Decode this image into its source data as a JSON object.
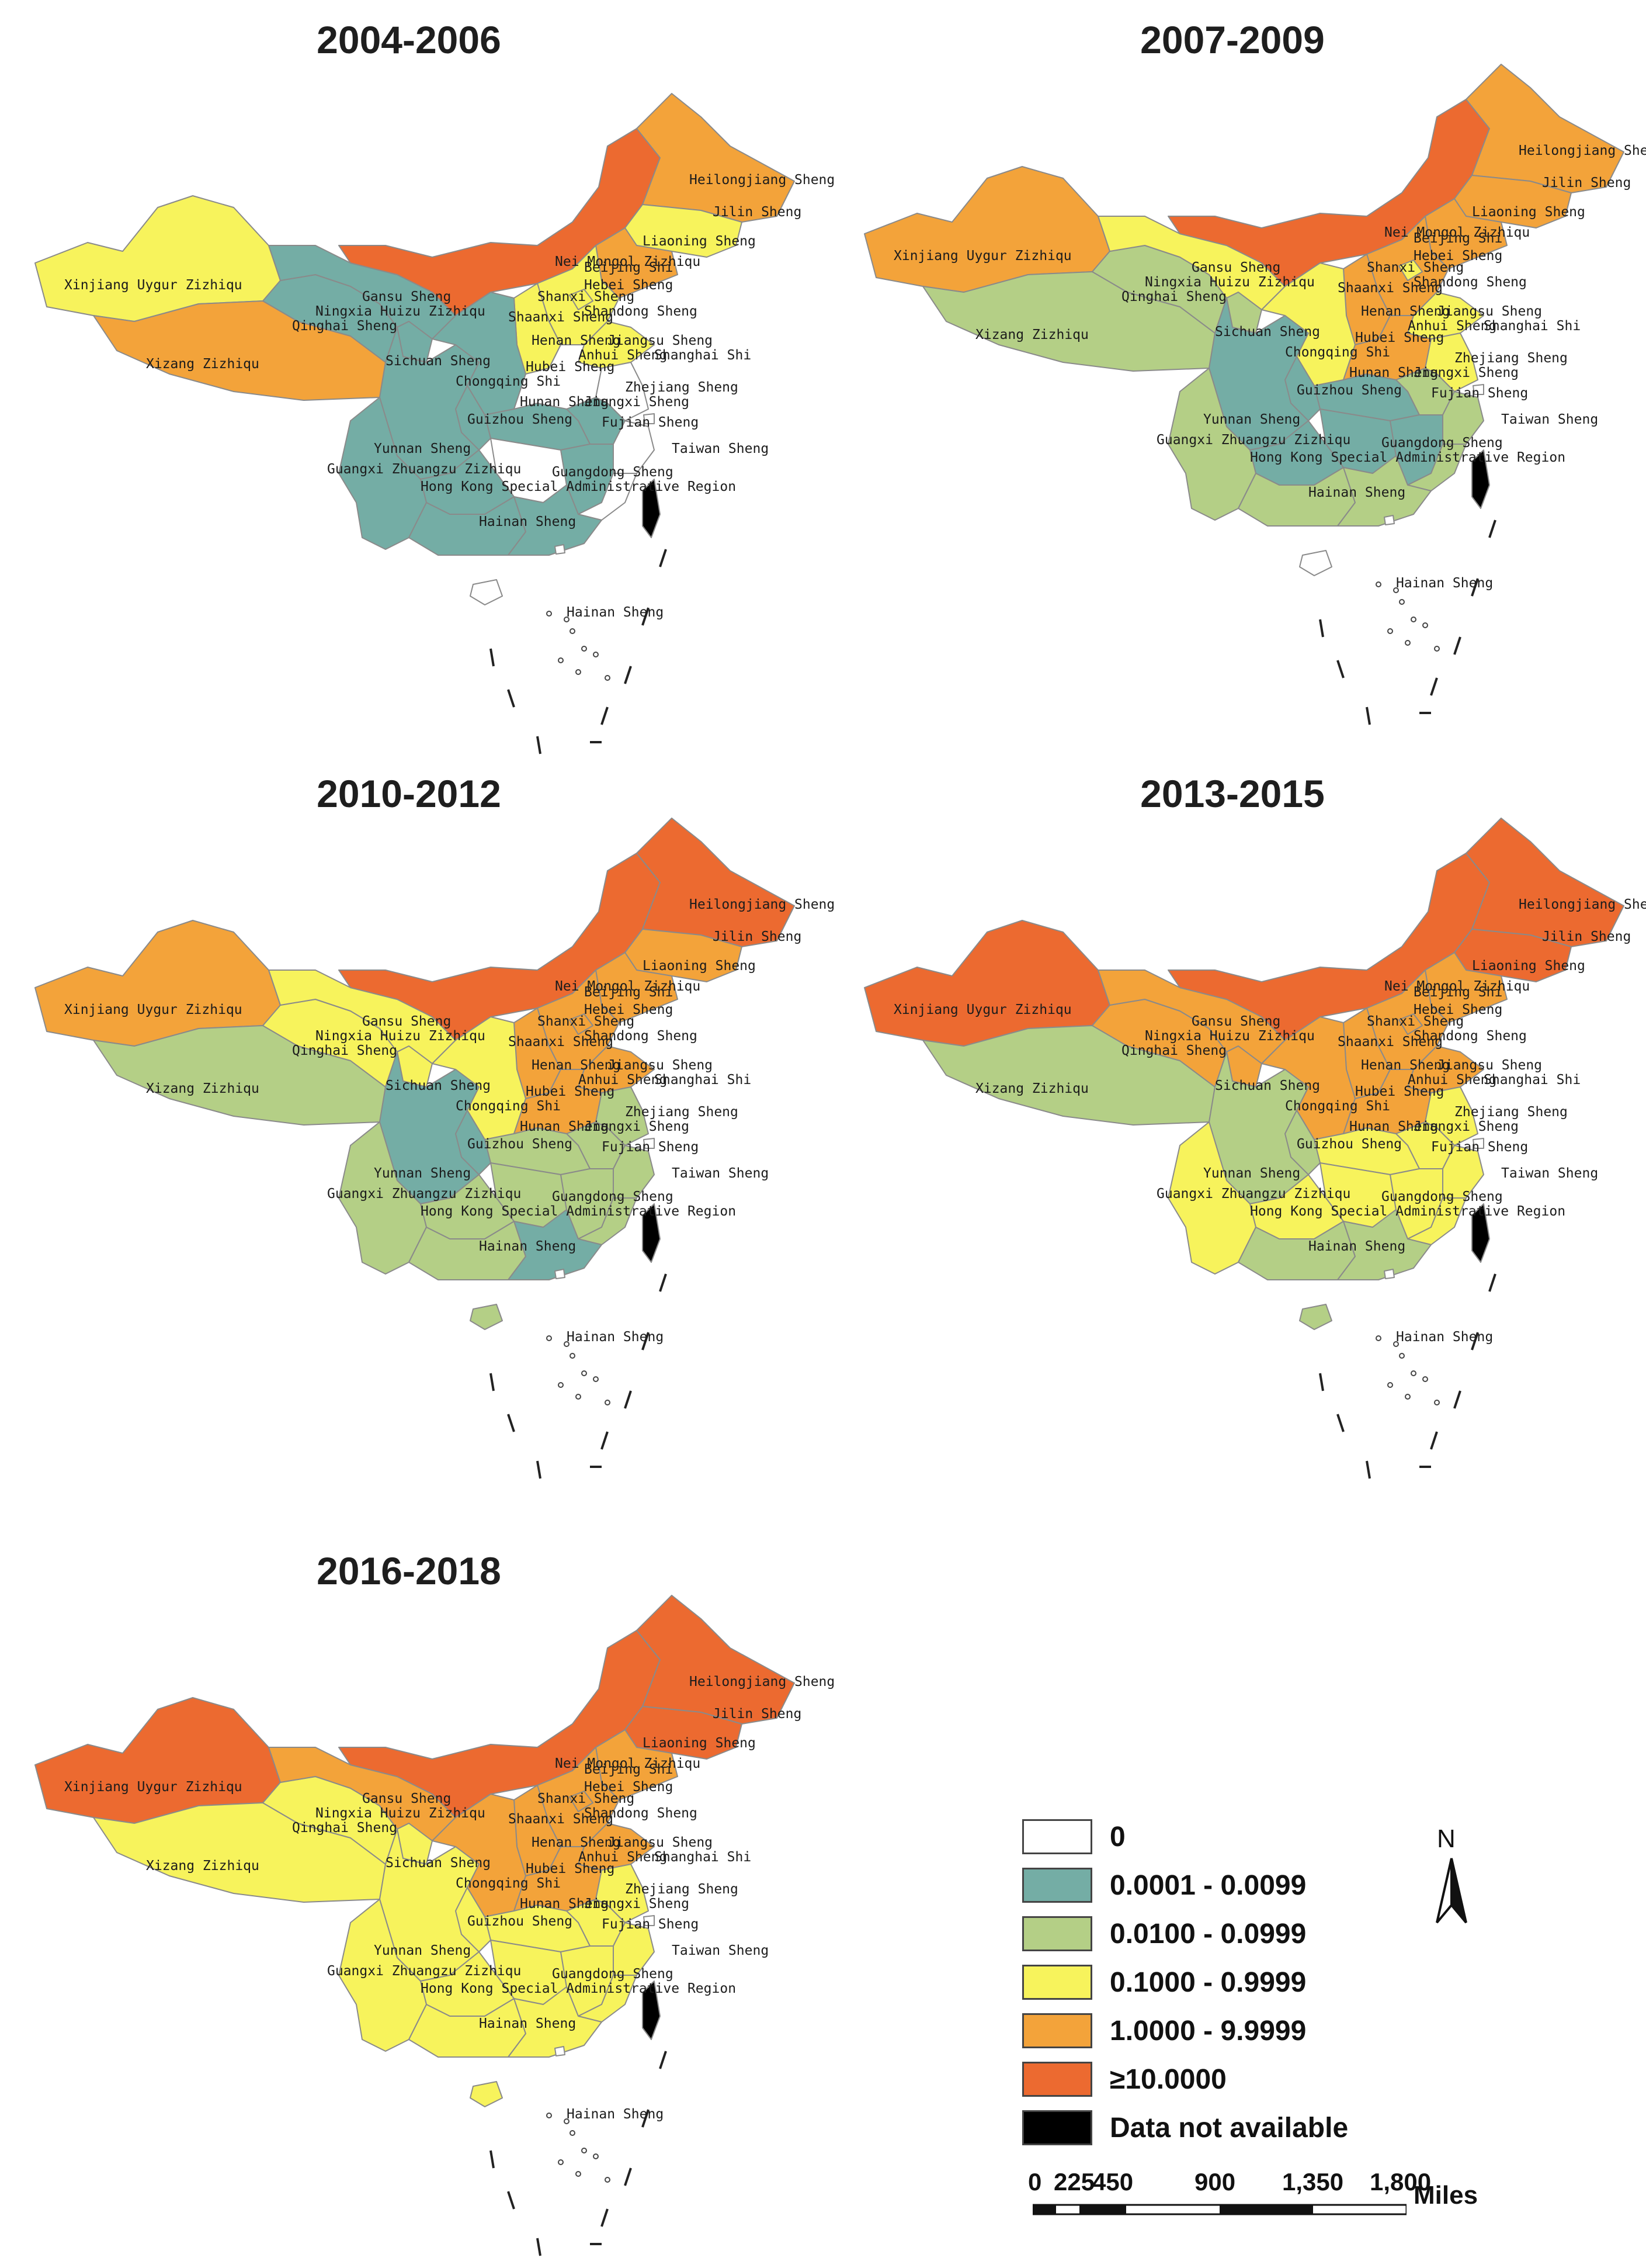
{
  "colors": {
    "c0": "#ffffff",
    "c1": "#74ada5",
    "c2": "#b4cf86",
    "c3": "#f7f35c",
    "c4": "#f3a33a",
    "c5": "#ec6a30",
    "na": "#000000"
  },
  "panels": [
    {
      "title": "2004-2006",
      "fills": {
        "xinjiang": "c3",
        "xizang": "c4",
        "qinghai": "c1",
        "gansu": "c1",
        "ningxia": "c1",
        "neimongol": "c5",
        "heilongjiang": "c4",
        "jilin": "c3",
        "liaoning": "c4",
        "shaanxi": "c1",
        "shanxi": "c3",
        "hebei": "c3",
        "beijing": "c3",
        "shandong": "c3",
        "henan": "c0",
        "hubei": "c1",
        "sichuan": "c1",
        "chongqing": "c1",
        "guizhou": "c1",
        "yunnan": "c1",
        "guangxi": "c1",
        "guangdong": "c1",
        "hunan": "c0",
        "jiangxi": "c1",
        "fujian": "c0",
        "zhejiang": "c0",
        "anhui": "c1",
        "jiangsu": "c0",
        "hainan": "c0",
        "taiwan": "na"
      }
    },
    {
      "title": "2007-2009",
      "fills": {
        "xinjiang": "c4",
        "xizang": "c2",
        "qinghai": "c2",
        "gansu": "c3",
        "ningxia": "c2",
        "neimongol": "c5",
        "heilongjiang": "c4",
        "jilin": "c4",
        "liaoning": "c4",
        "shaanxi": "c3",
        "shanxi": "c4",
        "hebei": "c4",
        "beijing": "c3",
        "shandong": "c3",
        "henan": "c4",
        "hubei": "c1",
        "sichuan": "c1",
        "chongqing": "c1",
        "guizhou": "c1",
        "yunnan": "c2",
        "guangxi": "c2",
        "guangdong": "c2",
        "hunan": "c1",
        "jiangxi": "c1",
        "fujian": "c2",
        "zhejiang": "c2",
        "anhui": "c2",
        "jiangsu": "c3",
        "hainan": "c0",
        "taiwan": "na"
      }
    },
    {
      "title": "2010-2012",
      "fills": {
        "xinjiang": "c4",
        "xizang": "c2",
        "qinghai": "c3",
        "gansu": "c3",
        "ningxia": "c3",
        "neimongol": "c5",
        "heilongjiang": "c5",
        "jilin": "c4",
        "liaoning": "c4",
        "shaanxi": "c3",
        "shanxi": "c4",
        "hebei": "c4",
        "beijing": "c4",
        "shandong": "c4",
        "henan": "c4",
        "hubei": "c2",
        "sichuan": "c1",
        "chongqing": "c1",
        "guizhou": "c2",
        "yunnan": "c2",
        "guangxi": "c2",
        "guangdong": "c1",
        "hunan": "c2",
        "jiangxi": "c2",
        "fujian": "c2",
        "zhejiang": "c2",
        "anhui": "c2",
        "jiangsu": "c2",
        "hainan": "c2",
        "taiwan": "na"
      }
    },
    {
      "title": "2013-2015",
      "fills": {
        "xinjiang": "c5",
        "xizang": "c2",
        "qinghai": "c4",
        "gansu": "c4",
        "ningxia": "c4",
        "neimongol": "c5",
        "heilongjiang": "c5",
        "jilin": "c5",
        "liaoning": "c4",
        "shaanxi": "c4",
        "shanxi": "c4",
        "hebei": "c4",
        "beijing": "c4",
        "shandong": "c4",
        "henan": "c4",
        "hubei": "c3",
        "sichuan": "c2",
        "chongqing": "c2",
        "guizhou": "c3",
        "yunnan": "c3",
        "guangxi": "c2",
        "guangdong": "c2",
        "hunan": "c3",
        "jiangxi": "c3",
        "fujian": "c3",
        "zhejiang": "c3",
        "anhui": "c3",
        "jiangsu": "c3",
        "hainan": "c2",
        "taiwan": "na"
      }
    },
    {
      "title": "2016-2018",
      "fills": {
        "xinjiang": "c5",
        "xizang": "c3",
        "qinghai": "c3",
        "gansu": "c4",
        "ningxia": "c3",
        "neimongol": "c5",
        "heilongjiang": "c5",
        "jilin": "c5",
        "liaoning": "c4",
        "shaanxi": "c4",
        "shanxi": "c4",
        "hebei": "c4",
        "beijing": "c4",
        "shandong": "c4",
        "henan": "c4",
        "hubei": "c3",
        "sichuan": "c3",
        "chongqing": "c3",
        "guizhou": "c3",
        "yunnan": "c3",
        "guangxi": "c3",
        "guangdong": "c3",
        "hunan": "c3",
        "jiangxi": "c3",
        "fujian": "c3",
        "zhejiang": "c3",
        "anhui": "c3",
        "jiangsu": "c3",
        "hainan": "c3",
        "taiwan": "na"
      }
    }
  ],
  "province_labels": {
    "xinjiang": "Xinjiang Uygur Zizhiqu",
    "xizang": "Xizang Zizhiqu",
    "qinghai": "Qinghai Sheng",
    "gansu": "Gansu Sheng",
    "ningxia": "Ningxia Huizu Zizhiqu",
    "neimongol": "Nei Mongol Zizhiqu",
    "heilongjiang": "Heilongjiang Sheng",
    "jilin": "Jilin Sheng",
    "liaoning": "Liaoning Sheng",
    "beijing": "Beijing Shi",
    "hebei": "Hebei Sheng",
    "shanxi": "Shanxi Sheng",
    "shaanxi": "Shaanxi Sheng",
    "shandong": "Shandong Sheng",
    "henan": "Henan Sheng",
    "jiangsu": "Jiangsu Sheng",
    "anhui": "Anhui Sheng",
    "shanghai": "Shanghai Shi",
    "hubei": "Hubei Sheng",
    "sichuan": "Sichuan Sheng",
    "chongqing": "Chongqing Shi",
    "zhejiang": "Zhejiang Sheng",
    "hunan": "Hunan Sheng",
    "jiangxi": "Jiangxi Sheng",
    "guizhou": "Guizhou Sheng",
    "fujian": "Fujian Sheng",
    "yunnan": "Yunnan Sheng",
    "taiwan": "Taiwan Sheng",
    "guangxi": "Guangxi Zhuangzu Zizhiqu",
    "guangdong": "Guangdong Sheng",
    "hongkong": "Hong Kong Special Administrative Region",
    "hainan": "Hainan Sheng",
    "hainan_islands": "Hainan Sheng"
  },
  "legend": {
    "items": [
      {
        "label": "0",
        "color": "#ffffff"
      },
      {
        "label": "0.0001 - 0.0099",
        "color": "#74ada5"
      },
      {
        "label": "0.0100 - 0.0999",
        "color": "#b4cf86"
      },
      {
        "label": "0.1000 - 0.9999",
        "color": "#f7f35c"
      },
      {
        "label": "1.0000 - 9.9999",
        "color": "#f3a33a"
      },
      {
        "label": "≥10.0000",
        "color": "#ec6a30"
      },
      {
        "label": "Data not available",
        "color": "#000000"
      }
    ]
  },
  "north_arrow": {
    "label": "N"
  },
  "scale_bar": {
    "ticks": [
      "0",
      "225",
      "450",
      "900",
      "1,350",
      "1,800"
    ],
    "unit": "Miles"
  }
}
